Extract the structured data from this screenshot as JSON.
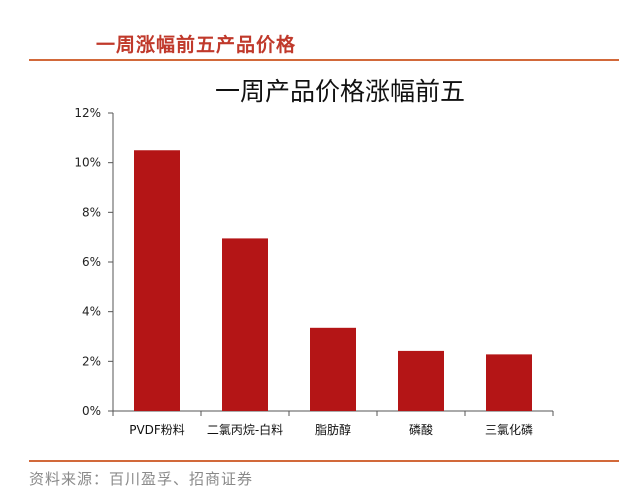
{
  "header": {
    "section_title": "一周涨幅前五产品价格"
  },
  "chart_data": {
    "type": "bar",
    "title": "一周产品价格涨幅前五",
    "xlabel": "",
    "ylabel": "",
    "categories": [
      "PVDF粉料",
      "二氯丙烷-白料",
      "脂肪醇",
      "磷酸",
      "三氯化磷"
    ],
    "values": [
      10.5,
      6.95,
      3.35,
      2.42,
      2.28
    ],
    "ylim": [
      0,
      12
    ],
    "yticks": [
      0,
      2,
      4,
      6,
      8,
      10,
      12
    ],
    "ytick_labels": [
      "0%",
      "2%",
      "4%",
      "6%",
      "8%",
      "10%",
      "12%"
    ],
    "grid": false,
    "bar_color": "#b41516"
  },
  "footer": {
    "source": "资料来源：百川盈孚、招商证券"
  }
}
